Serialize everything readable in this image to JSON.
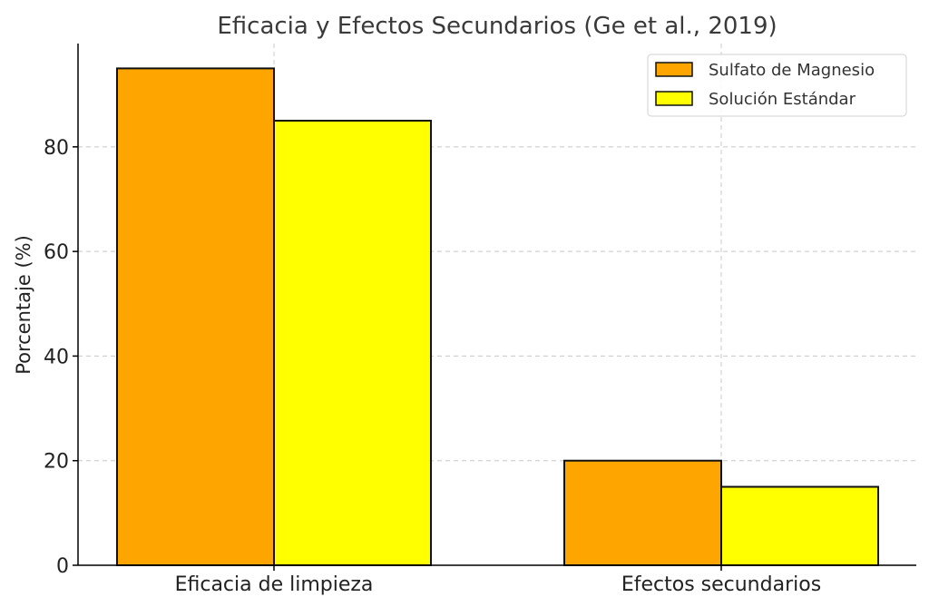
{
  "chart_data": {
    "type": "bar",
    "title": "Eficacia y Efectos Secundarios (Ge et al., 2019)",
    "xlabel": "",
    "ylabel": "Porcentaje (%)",
    "categories": [
      "Eficacia de limpieza",
      "Efectos secundarios"
    ],
    "series": [
      {
        "name": "Sulfato de Magnesio",
        "values": [
          95,
          20
        ],
        "color": "#FFA500"
      },
      {
        "name": "Solución Estándar",
        "values": [
          85,
          15
        ],
        "color": "#FFFF00"
      }
    ],
    "ylim": [
      0,
      99.75
    ],
    "yticks": [
      0,
      20,
      40,
      60,
      80
    ],
    "grid": true,
    "legend_position": "top-right"
  }
}
